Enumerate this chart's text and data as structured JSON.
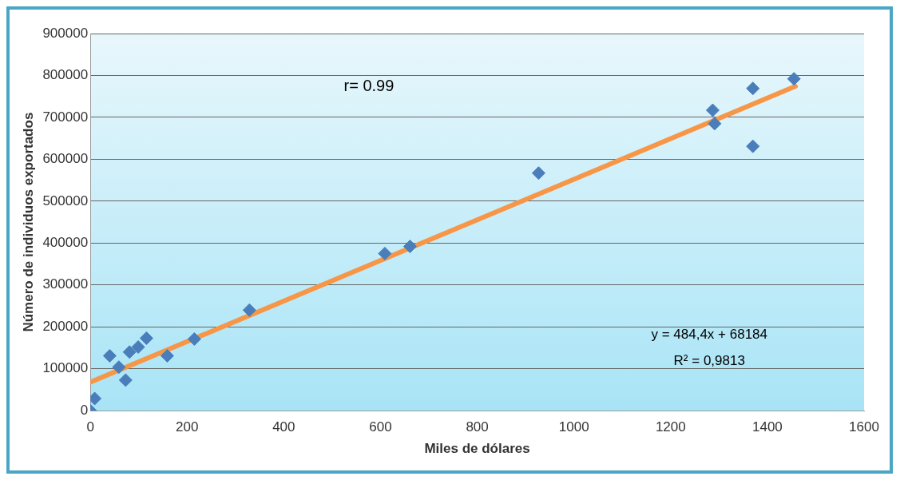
{
  "chart_data": {
    "type": "scatter",
    "xlabel": "Miles de dólares",
    "ylabel": "Número de individuos exportados",
    "xlim": [
      0,
      1600
    ],
    "xticks": [
      0,
      200,
      400,
      600,
      800,
      1000,
      1200,
      1400,
      1600
    ],
    "ylim": [
      0,
      900000
    ],
    "yticks": [
      0,
      100000,
      200000,
      300000,
      400000,
      500000,
      600000,
      700000,
      800000,
      900000
    ],
    "grid": "y",
    "legend": false,
    "annotations": [
      "r= 0.99",
      "y = 484,4x + 68184",
      "R² = 0,9813"
    ],
    "series": [
      {
        "color": "#4a7ebb",
        "marker": "diamond",
        "x": [
          0,
          9,
          40,
          59,
          73,
          81,
          99,
          116,
          159,
          215,
          329,
          609,
          661,
          927,
          1287,
          1291,
          1370,
          1370,
          1455
        ],
        "values": [
          0,
          29000,
          131000,
          104000,
          73000,
          140000,
          152000,
          173000,
          131000,
          171000,
          240000,
          375000,
          392000,
          567000,
          717000,
          685000,
          769000,
          631000,
          792000
        ]
      },
      {
        "type": "line",
        "color": "#f79646",
        "marker": "none",
        "x": [
          0,
          1458
        ],
        "values": [
          68000,
          774000
        ]
      }
    ]
  }
}
